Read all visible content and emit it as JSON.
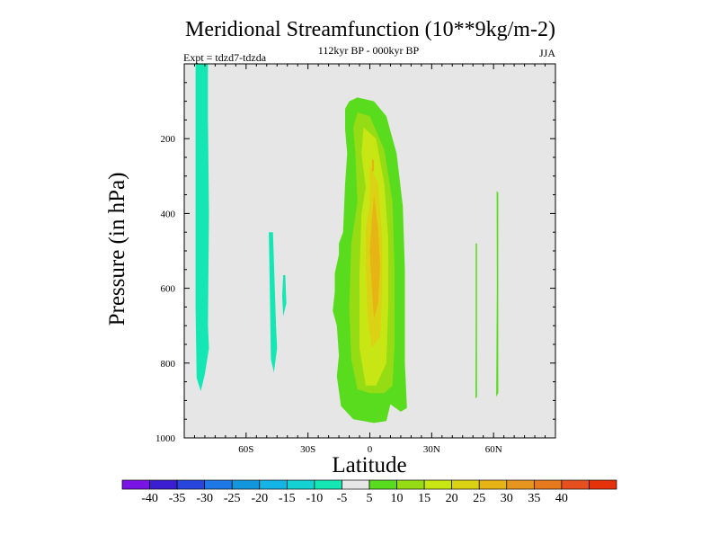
{
  "chart_data": {
    "type": "contour",
    "title": "Meridional Streamfunction (10**9kg/m-2)",
    "subtitle": "112kyr BP - 000kyr BP",
    "left_label": "Expt = tdzd7-tdzda",
    "right_label": "JJA",
    "xlabel": "Latitude",
    "ylabel": "Pressure (in hPa)",
    "xlim": [
      -90,
      90
    ],
    "ylim": [
      0,
      1000
    ],
    "y_inverted": true,
    "x_ticks": [
      {
        "value": -60,
        "label": "60S"
      },
      {
        "value": -30,
        "label": "30S"
      },
      {
        "value": 0,
        "label": "0"
      },
      {
        "value": 30,
        "label": "30N"
      },
      {
        "value": 60,
        "label": "60N"
      }
    ],
    "y_ticks": [
      {
        "value": 200,
        "label": "200"
      },
      {
        "value": 400,
        "label": "400"
      },
      {
        "value": 600,
        "label": "600"
      },
      {
        "value": 800,
        "label": "800"
      },
      {
        "value": 1000,
        "label": "1000"
      }
    ],
    "background_color": "#e6e6e6",
    "colorbar": {
      "colors": [
        "#7a14e6",
        "#3c1ed2",
        "#2846dc",
        "#1e78e6",
        "#1496dc",
        "#14b4e6",
        "#14d2d2",
        "#14e6b4",
        "#e6e6e6",
        "#5adc1e",
        "#96dc14",
        "#c8e614",
        "#dcd214",
        "#e6b414",
        "#e6961e",
        "#e6781e",
        "#e6501e",
        "#e6320a"
      ],
      "labels": [
        "-40",
        "-35",
        "-30",
        "-25",
        "-20",
        "-15",
        "-10",
        "-5",
        "5",
        "10",
        "15",
        "20",
        "25",
        "30",
        "35",
        "40"
      ]
    },
    "regions": [
      {
        "level": -10,
        "color": "#14e6b4",
        "points": [
          [
            -84.5,
            0
          ],
          [
            -78.5,
            0
          ],
          [
            -78.5,
            150
          ],
          [
            -78,
            400
          ],
          [
            -78.5,
            700
          ],
          [
            -78,
            760
          ],
          [
            -80,
            830
          ],
          [
            -82,
            875
          ],
          [
            -84,
            840
          ],
          [
            -84.5,
            650
          ],
          [
            -84.5,
            300
          ]
        ]
      },
      {
        "level": -10,
        "color": "#14e6b4",
        "points": [
          [
            -49,
            450
          ],
          [
            -47,
            450
          ],
          [
            -45.5,
            700
          ],
          [
            -45,
            760
          ],
          [
            -46.5,
            825
          ],
          [
            -48,
            790
          ],
          [
            -48.5,
            600
          ]
        ]
      },
      {
        "level": -10,
        "color": "#14e6b4",
        "points": [
          [
            -42,
            565
          ],
          [
            -41,
            565
          ],
          [
            -40.5,
            640
          ],
          [
            -42,
            675
          ],
          [
            -42.5,
            620
          ]
        ]
      },
      {
        "level": 5,
        "color": "#5adc1e",
        "points": [
          [
            -10,
            100
          ],
          [
            -6,
            90
          ],
          [
            2,
            100
          ],
          [
            8,
            140
          ],
          [
            13,
            240
          ],
          [
            16,
            380
          ],
          [
            17,
            550
          ],
          [
            17,
            800
          ],
          [
            18,
            920
          ],
          [
            15,
            930
          ],
          [
            10,
            910
          ],
          [
            8,
            955
          ],
          [
            2,
            960
          ],
          [
            -8,
            950
          ],
          [
            -14,
            915
          ],
          [
            -16,
            835
          ],
          [
            -15,
            780
          ],
          [
            -16,
            700
          ],
          [
            -18,
            660
          ],
          [
            -17,
            610
          ],
          [
            -17,
            560
          ],
          [
            -15,
            510
          ],
          [
            -15,
            480
          ],
          [
            -13,
            450
          ],
          [
            -12,
            320
          ],
          [
            -11,
            240
          ],
          [
            -12,
            175
          ],
          [
            -12,
            120
          ]
        ]
      },
      {
        "level": 10,
        "color": "#96dc14",
        "points": [
          [
            -6,
            130
          ],
          [
            0,
            140
          ],
          [
            7,
            230
          ],
          [
            11,
            370
          ],
          [
            12,
            550
          ],
          [
            12,
            750
          ],
          [
            11,
            860
          ],
          [
            7,
            880
          ],
          [
            0,
            880
          ],
          [
            -6,
            870
          ],
          [
            -9,
            790
          ],
          [
            -10,
            650
          ],
          [
            -9,
            480
          ],
          [
            -6,
            370
          ],
          [
            -7,
            240
          ],
          [
            -8,
            170
          ]
        ]
      },
      {
        "level": 15,
        "color": "#c8e614",
        "points": [
          [
            -3,
            170
          ],
          [
            3,
            200
          ],
          [
            7,
            320
          ],
          [
            9,
            470
          ],
          [
            9,
            640
          ],
          [
            8,
            800
          ],
          [
            3,
            860
          ],
          [
            -2,
            860
          ],
          [
            -5,
            760
          ],
          [
            -5,
            560
          ],
          [
            -4,
            400
          ],
          [
            -2,
            330
          ],
          [
            -4,
            240
          ]
        ]
      },
      {
        "level": 20,
        "color": "#dcd214",
        "points": [
          [
            0,
            270
          ],
          [
            4,
            320
          ],
          [
            6,
            470
          ],
          [
            6,
            620
          ],
          [
            5,
            730
          ],
          [
            1,
            760
          ],
          [
            -1,
            680
          ],
          [
            -2,
            540
          ],
          [
            -2,
            440
          ],
          [
            0,
            380
          ]
        ]
      },
      {
        "level": 25,
        "color": "#e6b414",
        "points": [
          [
            2,
            350
          ],
          [
            4,
            440
          ],
          [
            5,
            540
          ],
          [
            4,
            640
          ],
          [
            2,
            680
          ],
          [
            1,
            600
          ],
          [
            0,
            500
          ],
          [
            1,
            420
          ]
        ]
      },
      {
        "level": 25,
        "color": "#e6b414",
        "points": [
          [
            1,
            255
          ],
          [
            2,
            258
          ],
          [
            2,
            285
          ],
          [
            1,
            290
          ]
        ]
      },
      {
        "level": 5,
        "color": "#5adc1e",
        "points": [
          [
            51.3,
            480
          ],
          [
            52,
            480
          ],
          [
            52,
            890
          ],
          [
            51.2,
            895
          ],
          [
            51.3,
            700
          ]
        ]
      },
      {
        "level": 5,
        "color": "#5adc1e",
        "points": [
          [
            61.5,
            340
          ],
          [
            62.3,
            345
          ],
          [
            62.3,
            880
          ],
          [
            61.3,
            890
          ],
          [
            61.6,
            600
          ]
        ]
      }
    ]
  }
}
